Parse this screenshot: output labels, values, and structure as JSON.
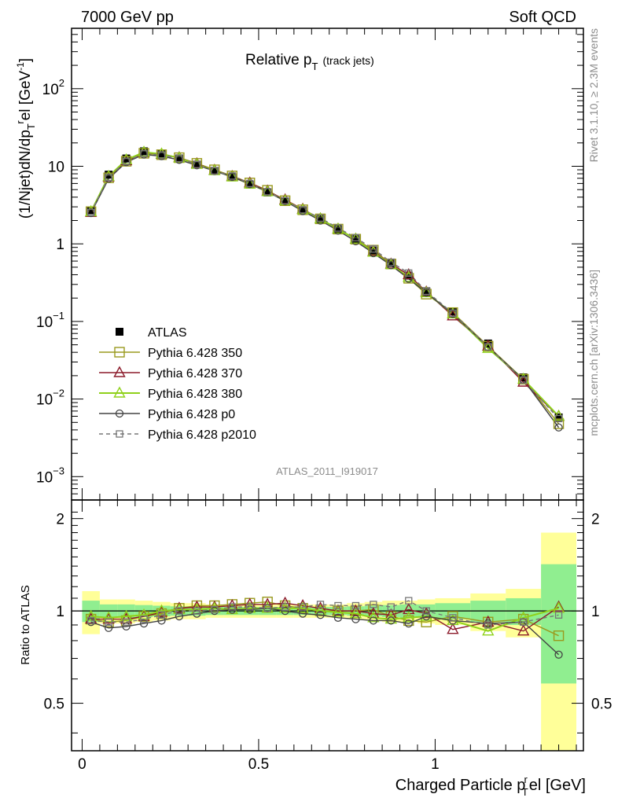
{
  "header": {
    "left": "7000 GeV pp",
    "right": "Soft QCD"
  },
  "side_labels": {
    "top": "Rivet 3.1.10, ≥ 2.3M events",
    "bottom": "mcplots.cern.ch [arXiv:1306.3436]"
  },
  "colors": {
    "ATLAS": "#000000",
    "p350": "#9a9a1e",
    "p370": "#8b1a2a",
    "p380": "#8fd11a",
    "p0": "#444444",
    "p2010": "#777777",
    "band_inner": "#90ee90",
    "band_outer": "#ffff99"
  },
  "chart_data": [
    {
      "type": "scatter",
      "title_main": "Relative p",
      "title_sub": "T",
      "title_extra": "(track jets)",
      "analysis_label": "ATLAS_2011_I919017",
      "ylabel": "(1/Njet)dN/dp",
      "ylabel_sub": "T",
      "ylabel_sup": "r",
      "ylabel_tail": "el [GeV",
      "ylabel_tail_sup": "-1",
      "ylabel_end": "]",
      "yscale": "log",
      "ylim": [
        0.0005,
        600
      ],
      "xlim": [
        -0.03,
        1.42
      ],
      "yticks": [
        {
          "value": 0.001,
          "base": "10",
          "exp": "−3"
        },
        {
          "value": 0.01,
          "base": "10",
          "exp": "−2"
        },
        {
          "value": 0.1,
          "base": "10",
          "exp": "−1"
        },
        {
          "value": 1,
          "base": "1",
          "exp": ""
        },
        {
          "value": 10,
          "base": "10",
          "exp": ""
        },
        {
          "value": 100,
          "base": "10",
          "exp": "2"
        }
      ],
      "x": [
        0.025,
        0.075,
        0.125,
        0.175,
        0.225,
        0.275,
        0.325,
        0.375,
        0.425,
        0.475,
        0.525,
        0.575,
        0.625,
        0.675,
        0.725,
        0.775,
        0.825,
        0.875,
        0.925,
        0.975,
        1.05,
        1.15,
        1.25,
        1.35
      ],
      "legend": [
        "ATLAS",
        "Pythia 6.428 350",
        "Pythia 6.428 370",
        "Pythia 6.428 380",
        "Pythia 6.428 p0",
        "Pythia 6.428 p2010"
      ],
      "legend_placement": "lower-left",
      "series": [
        {
          "name": "ATLAS",
          "values": [
            2.7,
            7.8,
            12.6,
            15.6,
            14.4,
            12.6,
            10.5,
            8.7,
            7.2,
            5.8,
            4.6,
            3.5,
            2.7,
            2.1,
            1.55,
            1.15,
            0.82,
            0.57,
            0.39,
            0.245,
            0.135,
            0.052,
            0.019,
            0.0058
          ]
        },
        {
          "name": "Pythia 6.428 350",
          "values": [
            2.6,
            7.1,
            11.6,
            14.7,
            14.1,
            12.9,
            10.9,
            9.0,
            7.5,
            6.1,
            4.9,
            3.6,
            2.75,
            2.1,
            1.55,
            1.15,
            0.83,
            0.55,
            0.36,
            0.225,
            0.13,
            0.048,
            0.018,
            0.0048
          ]
        },
        {
          "name": "Pythia 6.428 370",
          "values": [
            2.55,
            7.3,
            11.8,
            15.0,
            14.3,
            12.9,
            10.8,
            8.9,
            7.4,
            6.1,
            4.8,
            3.7,
            2.8,
            2.1,
            1.55,
            1.15,
            0.8,
            0.55,
            0.4,
            0.24,
            0.118,
            0.048,
            0.0165,
            0.006
          ]
        },
        {
          "name": "Pythia 6.428 380",
          "values": [
            2.6,
            7.4,
            12.1,
            15.2,
            14.4,
            12.8,
            10.6,
            8.8,
            7.3,
            5.9,
            4.7,
            3.6,
            2.75,
            2.1,
            1.55,
            1.15,
            0.78,
            0.54,
            0.37,
            0.235,
            0.125,
            0.045,
            0.018,
            0.006
          ]
        },
        {
          "name": "Pythia 6.428 p0",
          "values": [
            2.5,
            6.9,
            11.3,
            14.2,
            13.5,
            12.1,
            10.3,
            8.7,
            7.3,
            5.9,
            4.7,
            3.55,
            2.65,
            2.0,
            1.48,
            1.08,
            0.76,
            0.53,
            0.355,
            0.235,
            0.125,
            0.047,
            0.0178,
            0.0043
          ]
        },
        {
          "name": "Pythia 6.428 p2010",
          "values": [
            2.55,
            7.2,
            11.6,
            14.6,
            14.0,
            12.6,
            10.5,
            8.7,
            7.5,
            6.0,
            4.7,
            3.6,
            2.75,
            2.15,
            1.6,
            1.2,
            0.86,
            0.58,
            0.42,
            0.245,
            0.128,
            0.047,
            0.0175,
            0.0056
          ]
        }
      ]
    },
    {
      "type": "scatter",
      "ylabel": "Ratio to ATLAS",
      "xlabel_main": "Charged Particle p",
      "xlabel_sup": "r",
      "xlabel_sub": "T",
      "xlabel_tail": "el [GeV]",
      "ylim": [
        0.35,
        2.3
      ],
      "yscale": "log",
      "yticks": [
        {
          "value": 0.5,
          "label": "0.5"
        },
        {
          "value": 1,
          "label": "1"
        },
        {
          "value": 2,
          "label": "2"
        }
      ],
      "xticks": [
        {
          "value": 0,
          "label": "0"
        },
        {
          "value": 0.5,
          "label": "0.5"
        },
        {
          "value": 1,
          "label": "1"
        }
      ],
      "x": [
        0.025,
        0.075,
        0.125,
        0.175,
        0.225,
        0.275,
        0.325,
        0.375,
        0.425,
        0.475,
        0.525,
        0.575,
        0.625,
        0.675,
        0.725,
        0.775,
        0.825,
        0.875,
        0.925,
        0.975,
        1.05,
        1.15,
        1.25,
        1.35
      ],
      "bin_edges": [
        0,
        0.05,
        0.1,
        0.15,
        0.2,
        0.25,
        0.3,
        0.35,
        0.4,
        0.45,
        0.5,
        0.55,
        0.6,
        0.65,
        0.7,
        0.75,
        0.8,
        0.85,
        0.9,
        0.95,
        1.0,
        1.1,
        1.2,
        1.3,
        1.4
      ],
      "band_outer": [
        0.16,
        0.09,
        0.09,
        0.08,
        0.07,
        0.06,
        0.06,
        0.05,
        0.05,
        0.05,
        0.05,
        0.05,
        0.05,
        0.05,
        0.05,
        0.06,
        0.07,
        0.08,
        0.08,
        0.09,
        0.1,
        0.14,
        0.18,
        0.8
      ],
      "band_inner": [
        0.08,
        0.05,
        0.05,
        0.045,
        0.04,
        0.035,
        0.035,
        0.03,
        0.03,
        0.03,
        0.03,
        0.03,
        0.03,
        0.03,
        0.03,
        0.035,
        0.04,
        0.045,
        0.05,
        0.05,
        0.06,
        0.08,
        0.1,
        0.42
      ],
      "series": [
        {
          "name": "Pythia 6.428 350",
          "values": [
            0.94,
            0.92,
            0.93,
            0.96,
            0.98,
            1.02,
            1.04,
            1.04,
            1.05,
            1.06,
            1.07,
            1.04,
            1.02,
            1.0,
            1.0,
            1.0,
            1.01,
            0.96,
            0.93,
            0.92,
            0.96,
            0.92,
            0.94,
            0.83
          ]
        },
        {
          "name": "Pythia 6.428 370",
          "values": [
            0.94,
            0.94,
            0.94,
            0.96,
            0.99,
            1.02,
            1.03,
            1.03,
            1.04,
            1.05,
            1.05,
            1.06,
            1.04,
            1.02,
            1.0,
            1.0,
            0.98,
            0.97,
            1.01,
            0.98,
            0.87,
            0.92,
            0.86,
            1.03
          ]
        },
        {
          "name": "Pythia 6.428 380",
          "values": [
            0.96,
            0.95,
            0.96,
            0.97,
            1.0,
            1.01,
            1.01,
            1.02,
            1.01,
            1.02,
            1.02,
            1.02,
            1.02,
            1.0,
            0.99,
            0.98,
            0.95,
            0.94,
            0.95,
            0.96,
            0.93,
            0.86,
            0.95,
            1.02
          ]
        },
        {
          "name": "Pythia 6.428 p0",
          "values": [
            0.92,
            0.88,
            0.89,
            0.91,
            0.93,
            0.96,
            0.98,
            1.0,
            1.01,
            1.01,
            1.02,
            1.0,
            0.98,
            0.97,
            0.95,
            0.94,
            0.93,
            0.93,
            0.91,
            0.96,
            0.93,
            0.91,
            0.92,
            0.72
          ]
        },
        {
          "name": "Pythia 6.428 p2010",
          "values": [
            0.93,
            0.92,
            0.92,
            0.94,
            0.97,
            1.0,
            1.0,
            1.01,
            1.03,
            1.03,
            1.02,
            1.03,
            1.03,
            1.05,
            1.04,
            1.04,
            1.05,
            1.03,
            1.08,
            1.0,
            0.95,
            0.9,
            0.92,
            0.97
          ]
        }
      ]
    }
  ]
}
